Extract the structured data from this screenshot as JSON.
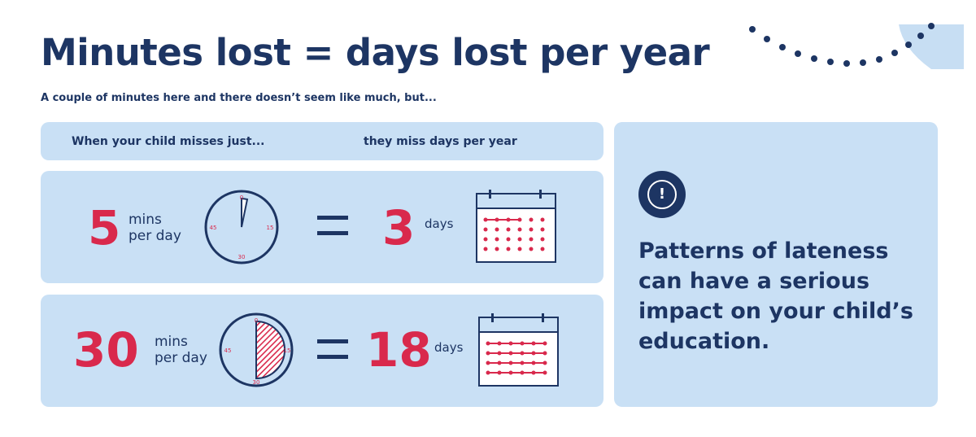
{
  "title": "Minutes lost = days lost per year",
  "subtitle": "A couple of minutes here and there doesn’t seem like much, but...",
  "header": {
    "left": "When your child misses just...",
    "right": "they miss days per year"
  },
  "rows": [
    {
      "minutes": "5",
      "unit_line1": "mins",
      "unit_line2": "per day",
      "equals": "=",
      "days": "3",
      "days_label": "days",
      "clock_labels": [
        "0",
        "15",
        "30",
        "45"
      ],
      "calendar_strikes": 1
    },
    {
      "minutes": "30",
      "unit_line1": "mins",
      "unit_line2": "per day",
      "equals": "=",
      "days": "18",
      "days_label": "days",
      "clock_labels": [
        "0",
        "15",
        "30",
        "45"
      ],
      "calendar_strikes": 4
    }
  ],
  "alert_icon": "exclamation-circle-icon",
  "alert_symbol": "!",
  "message": "Patterns of lateness can have a serious impact on your child’s education.",
  "colors": {
    "navy": "#1d3563",
    "red": "#d9294c",
    "panel": "#c9e0f5",
    "accent_blue": "#c7def3"
  }
}
